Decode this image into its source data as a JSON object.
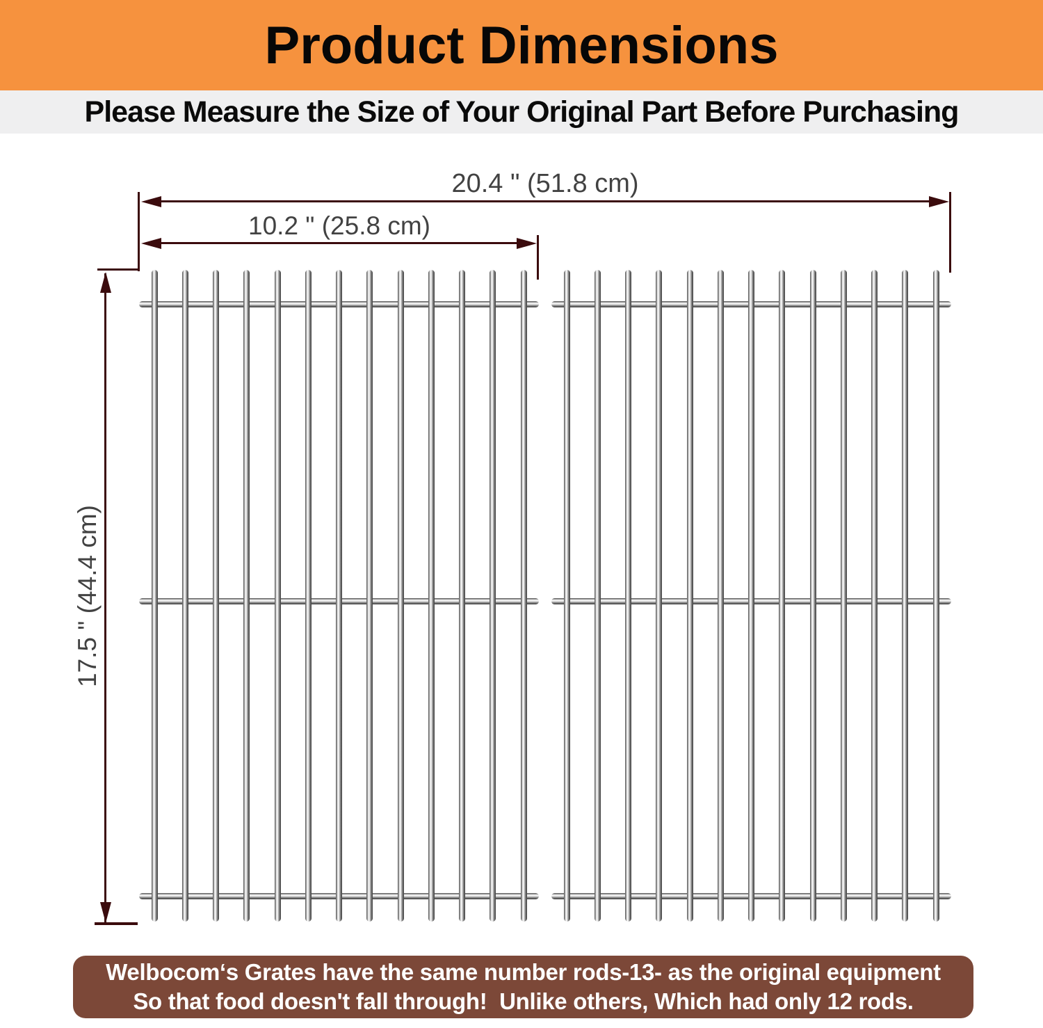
{
  "header": {
    "title": "Product Dimensions",
    "bg_color": "#F6923E"
  },
  "subtitle": {
    "text": "Please Measure the Size of Your Original Part Before Purchasing",
    "bg_color": "#EFEFF0"
  },
  "diagram": {
    "line_color": "#3B0B0D",
    "label_color": "#424242",
    "total_width_label": "20.4 \" (51.8 cm)",
    "half_width_label": "10.2 \" (25.8 cm)",
    "height_label": "17.5 \" (44.4 cm)",
    "dimensions": {
      "total_width_in": 20.4,
      "total_width_cm": 51.8,
      "single_grate_width_in": 10.2,
      "single_grate_width_cm": 25.8,
      "height_in": 17.5,
      "height_cm": 44.4
    },
    "grates": {
      "count": 2,
      "rods_per_grate": 13,
      "crossbars_per_grate": 3
    }
  },
  "footer": {
    "bg_color": "#7C4838",
    "line1": "Welbocom‘s Grates have the same number rods-13- as the original equipment",
    "line2": "So that food doesn't fall through!  Unlike others, Which had only 12 rods."
  }
}
